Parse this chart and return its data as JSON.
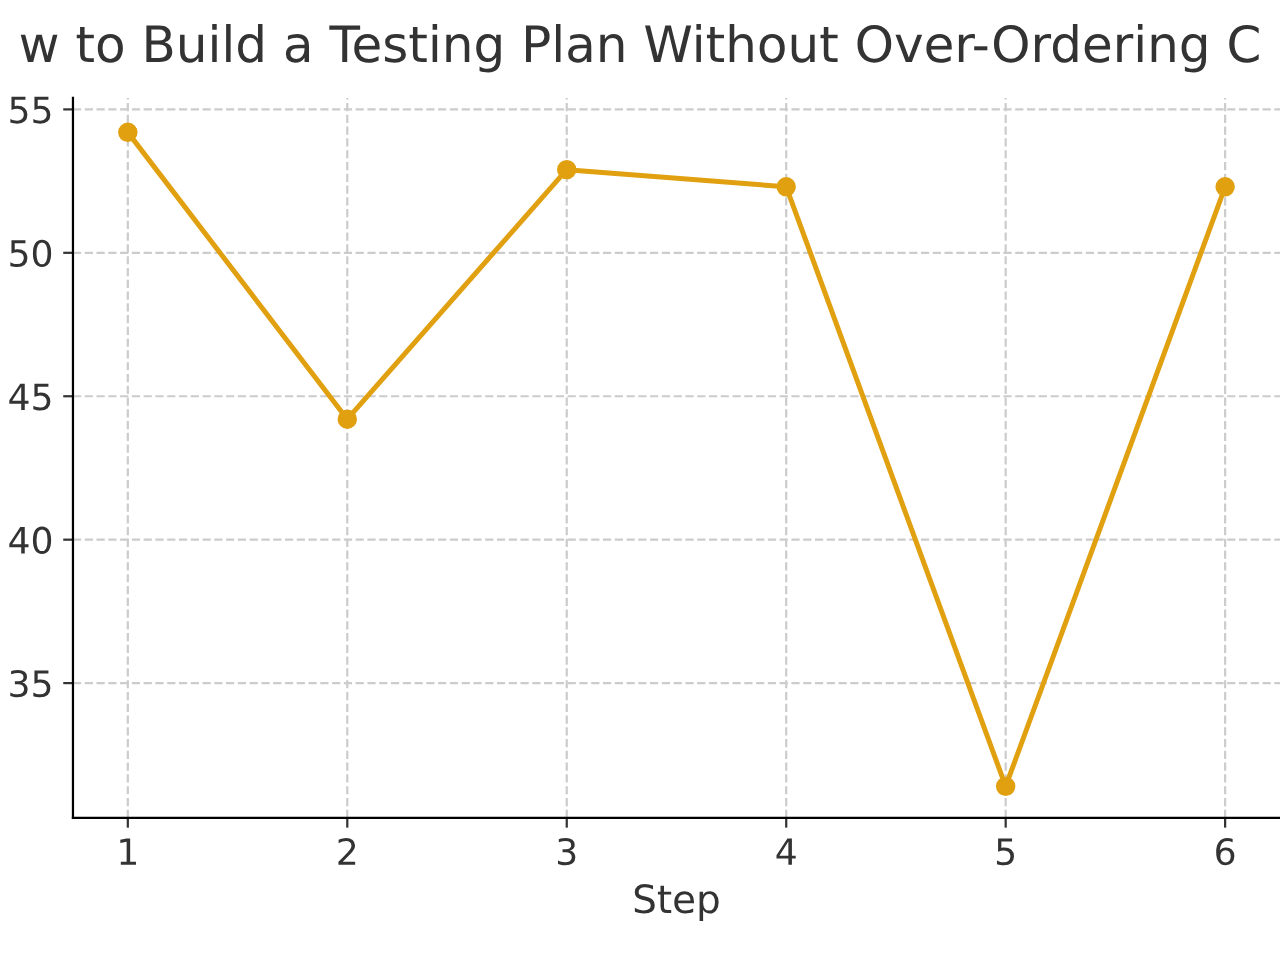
{
  "chart_data": {
    "type": "line",
    "title": "w to Build a Testing Plan Without Over-Ordering C",
    "xlabel": "Step",
    "x": [
      1,
      2,
      3,
      4,
      5,
      6
    ],
    "series": [
      {
        "color": "#e0a010",
        "values": [
          54.2,
          44.2,
          52.9,
          52.3,
          31.4,
          52.3
        ]
      }
    ],
    "xlim": [
      0.75,
      6.25
    ],
    "xticks": [
      1,
      2,
      3,
      4,
      5,
      6
    ],
    "ylim": [
      30.3,
      55.4
    ],
    "yticks": [
      35,
      40,
      45,
      50,
      55
    ],
    "grid": true,
    "marker": "circle",
    "line_style": "solid",
    "legend": false
  }
}
